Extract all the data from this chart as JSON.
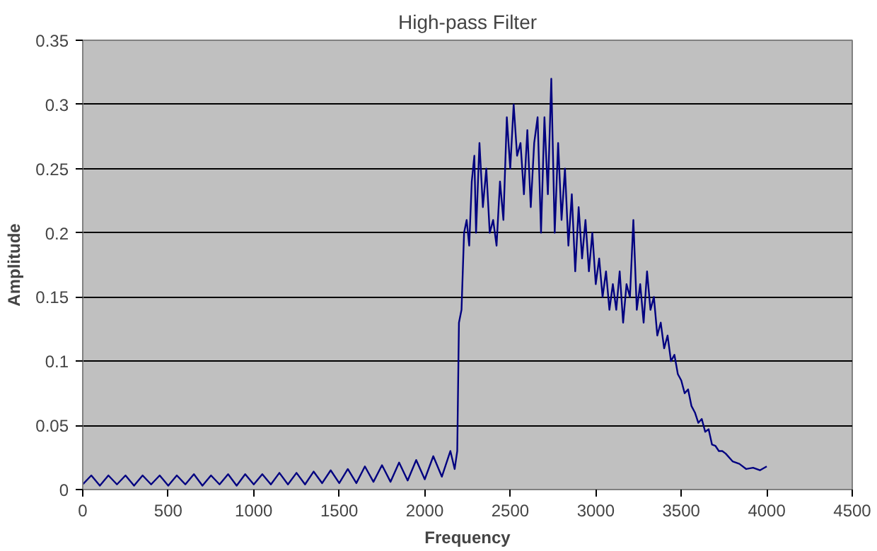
{
  "chart_data": {
    "type": "line",
    "title": "High-pass Filter",
    "xlabel": "Frequency",
    "ylabel": "Amplitude",
    "xlim": [
      0,
      4500
    ],
    "xticks": [
      0,
      500,
      1000,
      1500,
      2000,
      2500,
      3000,
      3500,
      4000,
      4500
    ],
    "ylim": [
      0,
      0.35
    ],
    "yticks": [
      0,
      0.05,
      0.1,
      0.15,
      0.2,
      0.25,
      0.3,
      0.35
    ],
    "grid": "y",
    "series": [
      {
        "color": "#000080",
        "x": [
          0,
          50,
          100,
          150,
          200,
          250,
          300,
          350,
          400,
          450,
          500,
          550,
          600,
          650,
          700,
          750,
          800,
          850,
          900,
          950,
          1000,
          1050,
          1100,
          1150,
          1200,
          1250,
          1300,
          1350,
          1400,
          1450,
          1500,
          1550,
          1600,
          1650,
          1700,
          1750,
          1800,
          1850,
          1900,
          1950,
          2000,
          2050,
          2100,
          2150,
          2175,
          2190,
          2200,
          2215,
          2230,
          2245,
          2260,
          2275,
          2290,
          2300,
          2320,
          2340,
          2360,
          2380,
          2400,
          2420,
          2440,
          2460,
          2480,
          2500,
          2520,
          2540,
          2560,
          2580,
          2600,
          2620,
          2640,
          2660,
          2680,
          2700,
          2720,
          2740,
          2760,
          2780,
          2800,
          2820,
          2840,
          2860,
          2880,
          2900,
          2920,
          2940,
          2960,
          2980,
          3000,
          3020,
          3040,
          3060,
          3080,
          3100,
          3120,
          3140,
          3160,
          3180,
          3200,
          3220,
          3240,
          3260,
          3280,
          3300,
          3320,
          3340,
          3360,
          3380,
          3400,
          3420,
          3440,
          3460,
          3480,
          3500,
          3520,
          3540,
          3560,
          3580,
          3600,
          3620,
          3640,
          3660,
          3680,
          3700,
          3720,
          3740,
          3760,
          3800,
          3840,
          3880,
          3920,
          3960,
          4000
        ],
        "values": [
          0.004,
          0.011,
          0.003,
          0.011,
          0.004,
          0.011,
          0.003,
          0.011,
          0.004,
          0.011,
          0.003,
          0.011,
          0.004,
          0.012,
          0.003,
          0.011,
          0.004,
          0.012,
          0.003,
          0.012,
          0.004,
          0.012,
          0.004,
          0.013,
          0.004,
          0.013,
          0.004,
          0.014,
          0.005,
          0.015,
          0.005,
          0.016,
          0.005,
          0.018,
          0.006,
          0.019,
          0.006,
          0.021,
          0.007,
          0.023,
          0.008,
          0.026,
          0.01,
          0.03,
          0.016,
          0.03,
          0.13,
          0.14,
          0.2,
          0.21,
          0.19,
          0.24,
          0.26,
          0.2,
          0.27,
          0.22,
          0.25,
          0.2,
          0.21,
          0.19,
          0.24,
          0.21,
          0.29,
          0.25,
          0.3,
          0.26,
          0.27,
          0.23,
          0.28,
          0.22,
          0.27,
          0.29,
          0.2,
          0.29,
          0.23,
          0.32,
          0.2,
          0.27,
          0.21,
          0.25,
          0.19,
          0.23,
          0.17,
          0.22,
          0.18,
          0.21,
          0.17,
          0.2,
          0.16,
          0.18,
          0.15,
          0.17,
          0.14,
          0.16,
          0.14,
          0.17,
          0.13,
          0.16,
          0.15,
          0.21,
          0.14,
          0.16,
          0.13,
          0.17,
          0.14,
          0.15,
          0.12,
          0.13,
          0.11,
          0.12,
          0.1,
          0.105,
          0.09,
          0.085,
          0.075,
          0.078,
          0.065,
          0.06,
          0.052,
          0.055,
          0.045,
          0.047,
          0.035,
          0.034,
          0.03,
          0.03,
          0.028,
          0.022,
          0.02,
          0.016,
          0.017,
          0.015,
          0.018
        ]
      }
    ]
  }
}
